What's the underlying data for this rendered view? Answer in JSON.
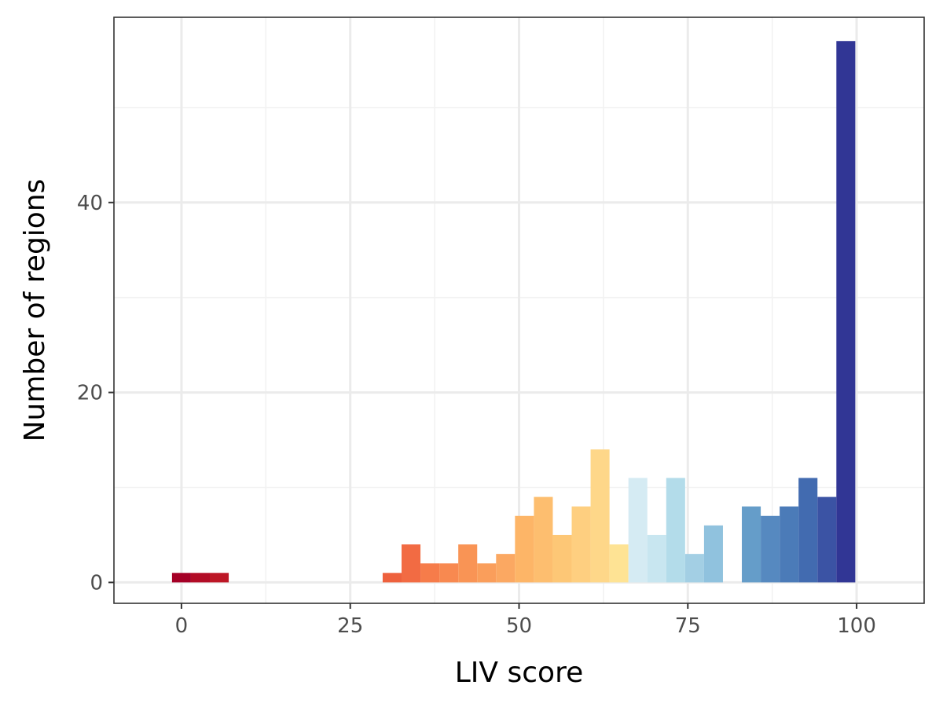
{
  "chart_data": {
    "type": "bar",
    "subtype": "histogram",
    "title": "",
    "xlabel": "LIV score",
    "ylabel": "Number of regions",
    "xlim": [
      -10,
      110
    ],
    "ylim": [
      -2.2,
      59.5
    ],
    "x_ticks": [
      0,
      25,
      50,
      75,
      100
    ],
    "x_tick_labels": [
      "0",
      "25",
      "50",
      "75",
      "100"
    ],
    "y_ticks": [
      0,
      20,
      40
    ],
    "y_tick_labels": [
      "0",
      "20",
      "40"
    ],
    "grid": true,
    "theme": "bw",
    "bin_width": 2.8,
    "bins": [
      {
        "x0": -1.4,
        "x1": 1.4,
        "count": 1,
        "color": "#a50026"
      },
      {
        "x0": 1.4,
        "x1": 4.2,
        "count": 1,
        "color": "#b20c26"
      },
      {
        "x0": 4.2,
        "x1": 7.0,
        "count": 1,
        "color": "#bd1726"
      },
      {
        "x0": 29.8,
        "x1": 32.6,
        "count": 1,
        "color": "#ee613d"
      },
      {
        "x0": 32.6,
        "x1": 35.4,
        "count": 4,
        "color": "#f26b43"
      },
      {
        "x0": 35.4,
        "x1": 38.2,
        "count": 2,
        "color": "#f67c4a"
      },
      {
        "x0": 38.2,
        "x1": 41.0,
        "count": 2,
        "color": "#f88950"
      },
      {
        "x0": 41.0,
        "x1": 43.8,
        "count": 4,
        "color": "#f99455"
      },
      {
        "x0": 43.8,
        "x1": 46.6,
        "count": 2,
        "color": "#fa9e5b"
      },
      {
        "x0": 46.6,
        "x1": 49.4,
        "count": 3,
        "color": "#fba862"
      },
      {
        "x0": 49.4,
        "x1": 52.2,
        "count": 7,
        "color": "#fdb567"
      },
      {
        "x0": 52.2,
        "x1": 55.0,
        "count": 9,
        "color": "#fdbe6f"
      },
      {
        "x0": 55.0,
        "x1": 57.8,
        "count": 5,
        "color": "#fdc776"
      },
      {
        "x0": 57.8,
        "x1": 60.6,
        "count": 8,
        "color": "#fecf80"
      },
      {
        "x0": 60.6,
        "x1": 63.4,
        "count": 14,
        "color": "#fed789"
      },
      {
        "x0": 63.4,
        "x1": 66.2,
        "count": 4,
        "color": "#fee394"
      },
      {
        "x0": 66.2,
        "x1": 69.0,
        "count": 11,
        "color": "#d5ebf3"
      },
      {
        "x0": 69.0,
        "x1": 71.8,
        "count": 5,
        "color": "#c8e6f0"
      },
      {
        "x0": 71.8,
        "x1": 74.6,
        "count": 11,
        "color": "#b3dcea"
      },
      {
        "x0": 74.6,
        "x1": 77.4,
        "count": 3,
        "color": "#a3cfe4"
      },
      {
        "x0": 77.4,
        "x1": 80.2,
        "count": 6,
        "color": "#90c2de"
      },
      {
        "x0": 83.0,
        "x1": 85.8,
        "count": 8,
        "color": "#659dc9"
      },
      {
        "x0": 85.8,
        "x1": 88.6,
        "count": 7,
        "color": "#5689c0"
      },
      {
        "x0": 88.6,
        "x1": 91.4,
        "count": 8,
        "color": "#4b7bb8"
      },
      {
        "x0": 91.4,
        "x1": 94.2,
        "count": 11,
        "color": "#426bb0"
      },
      {
        "x0": 94.2,
        "x1": 97.0,
        "count": 9,
        "color": "#3b53a4"
      },
      {
        "x0": 97.0,
        "x1": 99.8,
        "count": 57,
        "color": "#313695"
      }
    ],
    "colors": {
      "panel_border": "#333333",
      "grid_major": "#ebebeb",
      "grid_minor": "#f2f2f2",
      "tick_text": "#4d4d4d",
      "title_text": "#000000",
      "background": "#ffffff"
    }
  }
}
